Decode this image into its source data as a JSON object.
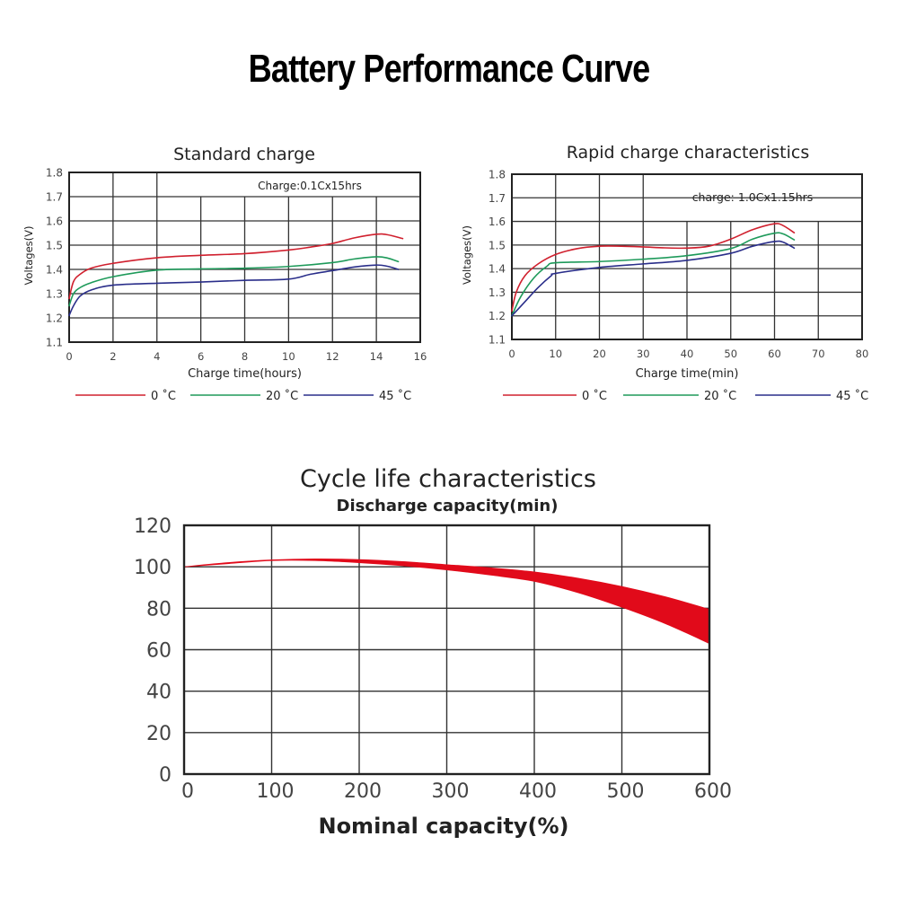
{
  "page_title": "Battery Performance Curve",
  "chart_data": [
    {
      "id": "standard",
      "type": "line",
      "title": "Standard charge",
      "annotation": "Charge:0.1Cx15hrs",
      "xlabel": "Charge time(hours)",
      "ylabel": "Voltages(V)",
      "xlim": [
        0,
        16
      ],
      "ylim": [
        1.1,
        1.8
      ],
      "xticks": [
        "0",
        "2",
        "4",
        "6",
        "8",
        "10",
        "12",
        "14",
        "16"
      ],
      "yticks": [
        "1.8",
        "1.7",
        "1.6",
        "1.5",
        "1.4",
        "1.3",
        "1.2",
        "1.1"
      ],
      "grid": true,
      "legend_position": "bottom",
      "series": [
        {
          "name": "0 ˚C",
          "color": "#d0202e",
          "x": [
            0,
            0.2,
            0.5,
            1,
            2,
            4,
            6,
            8,
            10,
            11,
            12,
            13,
            14,
            14.5,
            15.2
          ],
          "y": [
            1.28,
            1.35,
            1.38,
            1.405,
            1.425,
            1.448,
            1.458,
            1.465,
            1.48,
            1.492,
            1.507,
            1.53,
            1.545,
            1.543,
            1.527
          ]
        },
        {
          "name": "20 ˚C",
          "color": "#1e9a5a",
          "x": [
            0,
            0.2,
            0.5,
            1,
            2,
            4,
            6,
            8,
            10,
            12,
            13,
            14,
            14.5,
            15
          ],
          "y": [
            1.25,
            1.3,
            1.325,
            1.345,
            1.37,
            1.397,
            1.402,
            1.405,
            1.412,
            1.428,
            1.443,
            1.452,
            1.447,
            1.432
          ]
        },
        {
          "name": "45 ˚C",
          "color": "#2a2e8a",
          "x": [
            0,
            0.2,
            0.5,
            1,
            2,
            4,
            6,
            8,
            10,
            11,
            12,
            13,
            14,
            14.5,
            15
          ],
          "y": [
            1.21,
            1.25,
            1.29,
            1.315,
            1.335,
            1.343,
            1.348,
            1.355,
            1.36,
            1.38,
            1.395,
            1.41,
            1.418,
            1.413,
            1.4
          ]
        }
      ]
    },
    {
      "id": "rapid",
      "type": "line",
      "title": "Rapid charge characteristics",
      "annotation": "charge: 1.0Cx1.15hrs",
      "xlabel": "Charge time(min)",
      "ylabel": "Voltages(V)",
      "xlim": [
        0,
        80
      ],
      "ylim": [
        1.1,
        1.8
      ],
      "xticks": [
        "0",
        "10",
        "20",
        "30",
        "40",
        "50",
        "60",
        "70",
        "80"
      ],
      "yticks": [
        "1.8",
        "1.7",
        "1.6",
        "1.5",
        "1.4",
        "1.3",
        "1.2",
        "1.1"
      ],
      "grid": true,
      "legend_position": "bottom",
      "series": [
        {
          "name": "0 ˚C",
          "color": "#d0202e",
          "x": [
            0,
            1,
            3,
            6,
            10,
            15,
            20,
            25,
            30,
            35,
            40,
            45,
            50,
            55,
            60,
            62,
            64.5
          ],
          "y": [
            1.22,
            1.3,
            1.37,
            1.42,
            1.46,
            1.485,
            1.495,
            1.495,
            1.492,
            1.488,
            1.487,
            1.495,
            1.525,
            1.565,
            1.59,
            1.582,
            1.552
          ]
        },
        {
          "name": "20 ˚C",
          "color": "#1e9a5a",
          "x": [
            0,
            2,
            5,
            8,
            10,
            20,
            30,
            40,
            50,
            55,
            60,
            62,
            64.5
          ],
          "y": [
            1.2,
            1.28,
            1.36,
            1.41,
            1.425,
            1.43,
            1.44,
            1.455,
            1.485,
            1.525,
            1.55,
            1.547,
            1.522
          ]
        },
        {
          "name": "45 ˚C",
          "color": "#2a2e8a",
          "x": [
            0,
            3,
            6,
            9,
            10,
            20,
            30,
            40,
            50,
            55,
            60,
            62,
            64.5
          ],
          "y": [
            1.2,
            1.26,
            1.32,
            1.37,
            1.38,
            1.405,
            1.42,
            1.435,
            1.465,
            1.495,
            1.515,
            1.512,
            1.487
          ]
        }
      ]
    },
    {
      "id": "cycle",
      "type": "area",
      "title": "Cycle life characteristics",
      "ylabel": "Discharge capacity(min)",
      "xlabel": "Nominal capacity(%)",
      "xlim": [
        0,
        600
      ],
      "ylim": [
        0,
        120
      ],
      "xticks": [
        "0",
        "100",
        "200",
        "300",
        "400",
        "500",
        "600"
      ],
      "yticks": [
        "120",
        "100",
        "80",
        "60",
        "40",
        "20",
        "0"
      ],
      "grid": true,
      "band_color": "#e10a1a",
      "series": [
        {
          "name": "upper",
          "x": [
            0,
            50,
            100,
            150,
            200,
            250,
            300,
            350,
            400,
            450,
            500,
            550,
            600
          ],
          "y": [
            100,
            102,
            103.3,
            103.8,
            103.5,
            102.5,
            101,
            99.5,
            97.5,
            94.5,
            90.5,
            85.5,
            79.5
          ]
        },
        {
          "name": "lower",
          "x": [
            0,
            50,
            100,
            150,
            200,
            250,
            300,
            350,
            400,
            450,
            500,
            550,
            600
          ],
          "y": [
            100,
            101.5,
            103,
            103,
            102,
            100.5,
            98.5,
            96,
            93,
            87.5,
            80.5,
            72.5,
            63
          ]
        }
      ]
    }
  ]
}
